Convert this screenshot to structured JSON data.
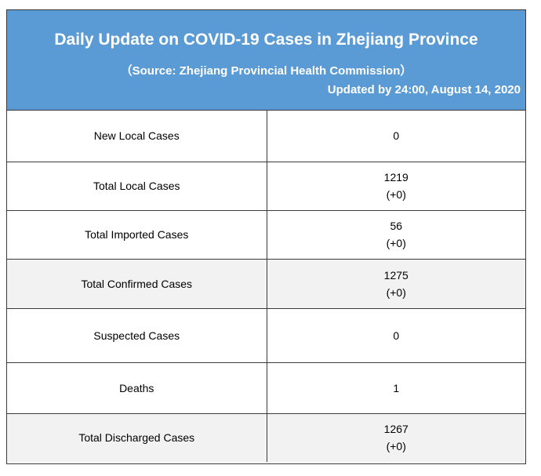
{
  "header": {
    "title": "Daily Update on COVID-19 Cases in Zhejiang Province",
    "source": "（Source: Zhejiang Provincial Health Commission）",
    "updated": "Updated by 24:00, August 14, 2020"
  },
  "rows": [
    {
      "label": "New Local Cases",
      "value": "0",
      "change": ""
    },
    {
      "label": "Total Local Cases",
      "value": "1219",
      "change": "(+0)"
    },
    {
      "label": "Total Imported Cases",
      "value": "56",
      "change": "(+0)"
    },
    {
      "label": "Total Confirmed Cases",
      "value": "1275",
      "change": "(+0)"
    },
    {
      "label": "Suspected Cases",
      "value": "0",
      "change": ""
    },
    {
      "label": "Deaths",
      "value": "1",
      "change": ""
    },
    {
      "label": "Total Discharged Cases",
      "value": "1267",
      "change": "(+0)"
    }
  ],
  "colors": {
    "header_bg": "#5b9bd5",
    "shade_bg": "#f2f2f2"
  }
}
